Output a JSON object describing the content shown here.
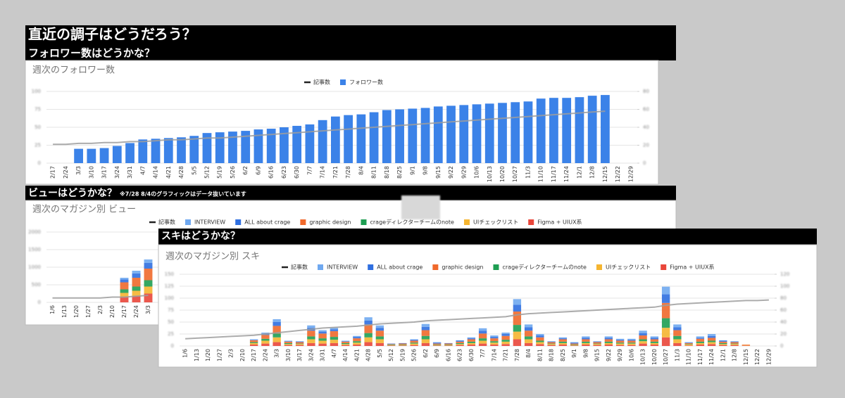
{
  "page_title": "直近の調子はどうだろう？",
  "chart_data": [
    {
      "type": "bar",
      "heading": "フォロワー数はどうかな？",
      "title": "週次のフォロワー数",
      "categories": [
        "2/17",
        "2/24",
        "3/3",
        "3/10",
        "3/17",
        "3/24",
        "3/31",
        "4/7",
        "4/14",
        "4/21",
        "4/28",
        "5/5",
        "5/12",
        "5/19",
        "5/26",
        "6/2",
        "6/9",
        "6/16",
        "6/23",
        "6/30",
        "7/7",
        "7/14",
        "7/21",
        "7/28",
        "8/4",
        "8/11",
        "8/18",
        "8/25",
        "9/1",
        "9/8",
        "9/15",
        "9/22",
        "9/29",
        "10/6",
        "10/13",
        "10/20",
        "10/27",
        "11/3",
        "11/10",
        "11/17",
        "11/24",
        "12/1",
        "12/8",
        "12/15",
        "12/22",
        "12/29"
      ],
      "series": [
        {
          "name": "記事数",
          "type": "line",
          "axis": "y2",
          "color": "#9e9e9e",
          "values": [
            21,
            21,
            22,
            22,
            23,
            23,
            24,
            24,
            25,
            26,
            26,
            27,
            28,
            28,
            29,
            30,
            31,
            32,
            33,
            34,
            35,
            36,
            37,
            38,
            39,
            40,
            41,
            42,
            43,
            44,
            45,
            46,
            47,
            48,
            49,
            50,
            51,
            52,
            53,
            54,
            55,
            56,
            57,
            58,
            null,
            null
          ]
        },
        {
          "name": "フォロワー数",
          "color": "#3b82e8",
          "values": [
            null,
            null,
            20,
            20,
            21,
            24,
            28,
            33,
            34,
            35,
            36,
            38,
            42,
            43,
            44,
            45,
            47,
            48,
            50,
            52,
            54,
            60,
            65,
            67,
            68,
            71,
            74,
            75,
            76,
            77,
            79,
            80,
            81,
            82,
            83,
            84,
            85,
            86,
            90,
            91,
            91,
            92,
            94,
            95,
            null,
            null
          ]
        }
      ],
      "ylim": [
        0,
        100
      ],
      "yticks": [
        0,
        25,
        50,
        75,
        100
      ],
      "y2lim": [
        0,
        80
      ],
      "y2ticks": [
        0,
        20,
        40,
        60,
        80
      ],
      "grid": true,
      "legend": "top"
    },
    {
      "type": "bar",
      "stacked": true,
      "heading": "ビューはどうかな？",
      "note": "※7/28 8/4のグラフィックはデータ抜いています",
      "title": "週次のマガジン別 ビュー",
      "categories": [
        "1/6",
        "1/13",
        "1/20",
        "1/27",
        "2/3",
        "2/10",
        "2/17",
        "2/24",
        "3/3"
      ],
      "series": [
        {
          "name": "記事数",
          "type": "line",
          "axis": "y2",
          "color": "#9e9e9e",
          "values": [
            5,
            5,
            5,
            5,
            5,
            6,
            6,
            7,
            8
          ]
        },
        {
          "name": "INTERVIEW",
          "color": "#6fa8f0",
          "values": [
            0,
            0,
            0,
            0,
            0,
            0,
            50,
            80,
            100
          ]
        },
        {
          "name": "ALL about crage",
          "color": "#2f6fe0",
          "values": [
            0,
            0,
            0,
            0,
            0,
            0,
            80,
            120,
            160
          ]
        },
        {
          "name": "graphic design",
          "color": "#f0692b",
          "values": [
            0,
            0,
            0,
            0,
            0,
            0,
            200,
            250,
            330
          ]
        },
        {
          "name": "crageディレクターチームのnote",
          "color": "#1e9e52",
          "values": [
            0,
            0,
            0,
            0,
            0,
            0,
            100,
            120,
            180
          ]
        },
        {
          "name": "UIチェックリスト",
          "color": "#f5b530",
          "values": [
            0,
            0,
            0,
            0,
            0,
            0,
            120,
            150,
            200
          ]
        },
        {
          "name": "Figma + UIUX系",
          "color": "#e9463a",
          "values": [
            0,
            0,
            0,
            0,
            0,
            0,
            150,
            180,
            250
          ]
        }
      ],
      "ylim": [
        0,
        2000
      ],
      "yticks": [
        0,
        500,
        1000,
        1500,
        2000
      ],
      "y2lim": [
        0,
        80
      ],
      "grid": true,
      "legend": "top"
    },
    {
      "type": "bar",
      "stacked": true,
      "heading": "スキはどうかな？",
      "title": "週次のマガジン別 スキ",
      "categories": [
        "1/6",
        "1/13",
        "1/20",
        "1/27",
        "2/3",
        "2/10",
        "2/17",
        "2/24",
        "3/3",
        "3/10",
        "3/17",
        "3/24",
        "3/31",
        "4/7",
        "4/14",
        "4/21",
        "4/28",
        "5/5",
        "5/12",
        "5/19",
        "5/26",
        "6/2",
        "6/9",
        "6/16",
        "6/23",
        "6/30",
        "7/7",
        "7/14",
        "7/21",
        "7/28",
        "8/4",
        "8/11",
        "8/18",
        "8/25",
        "9/1",
        "9/8",
        "9/15",
        "9/22",
        "9/29",
        "10/6",
        "10/13",
        "10/20",
        "10/27",
        "11/3",
        "11/10",
        "11/17",
        "11/24",
        "12/1",
        "12/8",
        "12/15",
        "12/22",
        "12/29"
      ],
      "series": [
        {
          "name": "記事数",
          "type": "line",
          "axis": "y2",
          "color": "#9e9e9e",
          "values": [
            12,
            13,
            14,
            15,
            16,
            17,
            18,
            20,
            22,
            24,
            26,
            28,
            30,
            31,
            32,
            33,
            35,
            37,
            38,
            39,
            40,
            42,
            43,
            44,
            45,
            46,
            47,
            48,
            49,
            52,
            54,
            55,
            56,
            57,
            58,
            59,
            60,
            61,
            62,
            63,
            64,
            65,
            68,
            70,
            71,
            72,
            73,
            74,
            75,
            76,
            76,
            77
          ]
        },
        {
          "name": "INTERVIEW",
          "color": "#6fa8f0",
          "values": [
            0,
            0,
            0,
            0,
            0,
            0,
            1,
            2,
            6,
            1,
            1,
            5,
            3,
            3,
            1,
            2,
            7,
            5,
            0,
            0,
            1,
            6,
            1,
            0,
            1,
            2,
            5,
            3,
            3,
            12,
            6,
            3,
            1,
            2,
            1,
            3,
            1,
            3,
            2,
            2,
            5,
            3,
            16,
            6,
            1,
            3,
            4,
            1,
            1,
            0,
            0,
            0
          ]
        },
        {
          "name": "ALL about crage",
          "color": "#2f6fe0",
          "values": [
            0,
            0,
            0,
            0,
            0,
            0,
            1,
            3,
            8,
            1,
            1,
            6,
            4,
            4,
            1,
            3,
            8,
            6,
            1,
            1,
            2,
            7,
            2,
            1,
            2,
            2,
            6,
            3,
            4,
            14,
            7,
            4,
            1,
            2,
            2,
            3,
            1,
            3,
            2,
            2,
            5,
            3,
            18,
            6,
            1,
            2,
            4,
            2,
            1,
            0,
            0,
            0
          ]
        },
        {
          "name": "graphic design",
          "color": "#f0692b",
          "values": [
            0,
            0,
            0,
            0,
            0,
            0,
            4,
            8,
            16,
            3,
            3,
            12,
            10,
            12,
            3,
            6,
            18,
            12,
            1,
            2,
            4,
            12,
            2,
            2,
            3,
            5,
            10,
            6,
            8,
            28,
            12,
            7,
            3,
            5,
            2,
            5,
            3,
            5,
            4,
            4,
            8,
            5,
            32,
            12,
            2,
            6,
            6,
            3,
            3,
            1,
            0,
            0
          ]
        },
        {
          "name": "crageディレクターチームのnote",
          "color": "#1e9e52",
          "values": [
            0,
            0,
            0,
            0,
            0,
            0,
            2,
            4,
            8,
            2,
            1,
            6,
            5,
            6,
            2,
            3,
            9,
            6,
            1,
            1,
            2,
            7,
            1,
            1,
            2,
            3,
            5,
            3,
            4,
            14,
            6,
            3,
            1,
            3,
            1,
            3,
            1,
            3,
            2,
            2,
            4,
            3,
            20,
            7,
            1,
            3,
            3,
            2,
            1,
            0,
            0,
            0
          ]
        },
        {
          "name": "UIチェックリスト",
          "color": "#f5b530",
          "values": [
            0,
            0,
            0,
            0,
            0,
            0,
            3,
            6,
            10,
            2,
            2,
            8,
            6,
            7,
            2,
            4,
            10,
            8,
            1,
            1,
            3,
            8,
            1,
            1,
            2,
            3,
            6,
            4,
            5,
            16,
            8,
            4,
            2,
            3,
            1,
            3,
            2,
            3,
            3,
            3,
            5,
            3,
            20,
            8,
            2,
            3,
            4,
            2,
            2,
            1,
            0,
            0
          ]
        },
        {
          "name": "Figma + UIUX系",
          "color": "#e9463a",
          "values": [
            0,
            0,
            0,
            0,
            0,
            0,
            3,
            5,
            8,
            2,
            2,
            6,
            5,
            6,
            2,
            3,
            8,
            6,
            1,
            1,
            2,
            6,
            1,
            1,
            2,
            3,
            5,
            3,
            4,
            14,
            6,
            4,
            2,
            3,
            1,
            3,
            2,
            3,
            2,
            2,
            5,
            3,
            18,
            6,
            1,
            3,
            4,
            2,
            2,
            1,
            0,
            0
          ]
        }
      ],
      "ylim": [
        0,
        150
      ],
      "yticks": [
        0,
        25,
        50,
        75,
        100,
        125,
        150
      ],
      "y2lim": [
        0,
        120
      ],
      "y2ticks": [
        0,
        20,
        40,
        60,
        80,
        100,
        120
      ],
      "grid": true,
      "legend": "top"
    }
  ]
}
